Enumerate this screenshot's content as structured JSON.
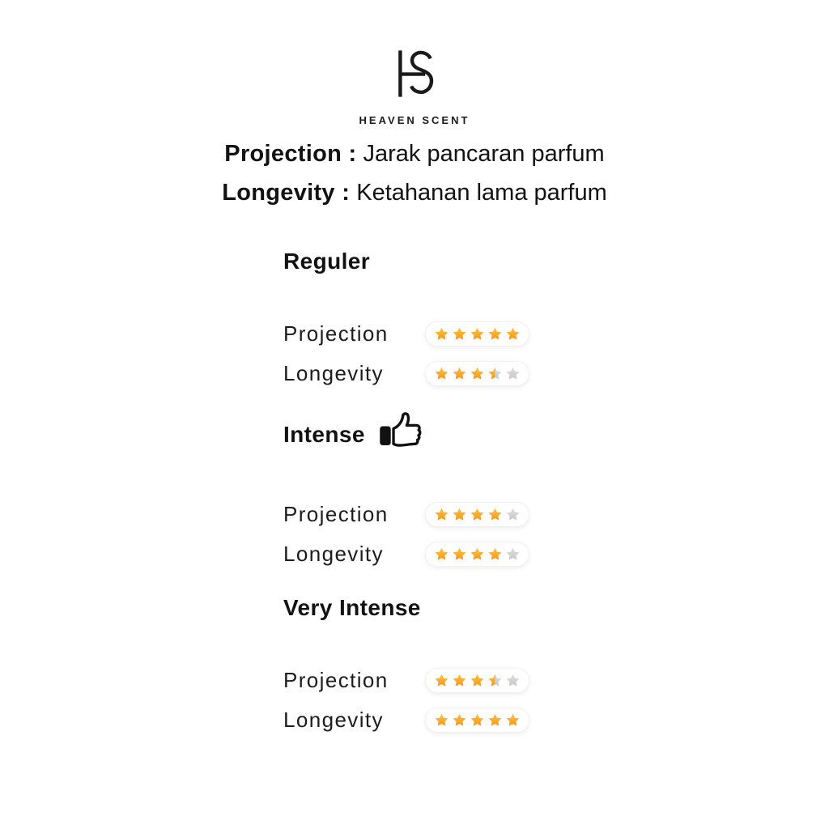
{
  "brand": {
    "monogram": "HS",
    "name": "HEAVEN SCENT"
  },
  "header": {
    "lines": [
      {
        "term": "Projection :",
        "definition": "Jarak pancaran parfum"
      },
      {
        "term": "Longevity :",
        "definition": "Ketahanan lama parfum"
      }
    ]
  },
  "rating_scale": {
    "max_stars": 5,
    "star_gradient_top": "#FDC53F",
    "star_gradient_bottom": "#F7941E",
    "empty_gradient_top": "#DEDEDE",
    "empty_gradient_bottom": "#C8C8CA"
  },
  "sections": [
    {
      "title": "Reguler",
      "rows": [
        {
          "label": "Projection",
          "rating": 5
        },
        {
          "label": "Longevity",
          "rating": 3.5
        }
      ]
    },
    {
      "title": "Intense",
      "icon": "thumbs-up",
      "rows": [
        {
          "label": "Projection",
          "rating": 4
        },
        {
          "label": "Longevity",
          "rating": 4
        }
      ]
    },
    {
      "title": "Very Intense",
      "rows": [
        {
          "label": "Projection",
          "rating": 3.5
        },
        {
          "label": "Longevity",
          "rating": 5
        }
      ]
    }
  ]
}
